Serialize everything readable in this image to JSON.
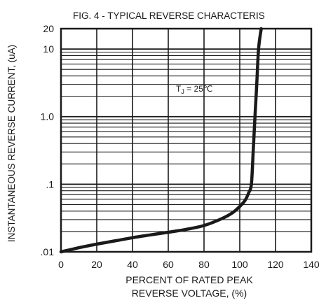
{
  "chart_data": {
    "type": "line",
    "title": "FIG. 4 - TYPICAL REVERSE CHARACTERIS",
    "xlabel_lines": [
      "PERCENT OF RATED PEAK",
      "REVERSE VOLTAGE, (%)"
    ],
    "ylabel": "INSTANTANEOUS REVERSE CURRENT, (uA)",
    "x_scale": "linear",
    "y_scale": "log",
    "xlim": [
      0,
      140
    ],
    "ylim": [
      0.01,
      20
    ],
    "x_ticks": [
      0,
      20,
      40,
      60,
      80,
      100,
      120,
      140
    ],
    "y_ticks": [
      0.01,
      0.1,
      1.0,
      10,
      20
    ],
    "x_tick_labels": [
      "0",
      "20",
      "40",
      "60",
      "80",
      "100",
      "120",
      "140"
    ],
    "y_tick_labels": [
      ".01",
      ".1",
      "1.0",
      "10",
      "20"
    ],
    "grid": true,
    "annotation": {
      "text_main": "T",
      "text_sub": "J",
      "text_rest": " = 25℃"
    },
    "series": [
      {
        "color": "#1a1a1a",
        "points": [
          [
            0,
            0.01
          ],
          [
            10,
            0.0115
          ],
          [
            20,
            0.013
          ],
          [
            30,
            0.0145
          ],
          [
            40,
            0.0162
          ],
          [
            50,
            0.0178
          ],
          [
            60,
            0.0195
          ],
          [
            70,
            0.0215
          ],
          [
            80,
            0.0245
          ],
          [
            90,
            0.031
          ],
          [
            96,
            0.038
          ],
          [
            100,
            0.047
          ],
          [
            103,
            0.058
          ],
          [
            105,
            0.075
          ],
          [
            106.5,
            0.1
          ],
          [
            107.5,
            0.3
          ],
          [
            108.5,
            1.0
          ],
          [
            109.5,
            3.0
          ],
          [
            110.5,
            10
          ],
          [
            112,
            20
          ]
        ]
      }
    ]
  }
}
